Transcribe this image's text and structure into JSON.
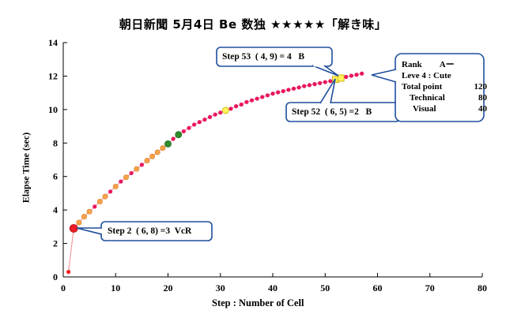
{
  "title": "朝日新聞 5月4日 Be 数独 ★★★★★「解き味」",
  "chart_data": {
    "type": "scatter",
    "title": "朝日新聞 5月4日 Be 数独 ★★★★★「解き味」",
    "xlabel": "Step :   Number of Cell",
    "ylabel": "Elapse Time (sec)",
    "xlim": [
      0,
      80
    ],
    "ylim": [
      0,
      14
    ],
    "xticks": [
      "0",
      "10",
      "20",
      "30",
      "40",
      "50",
      "60",
      "70",
      "80"
    ],
    "yticks": [
      "0",
      "2",
      "4",
      "6",
      "8",
      "10",
      "12",
      "14"
    ],
    "grid": false,
    "series": [
      {
        "name": "elapse",
        "x": [
          1,
          2,
          3,
          4,
          5,
          6,
          7,
          8,
          9,
          10,
          11,
          12,
          13,
          14,
          15,
          16,
          17,
          18,
          19,
          20,
          21,
          22,
          23,
          24,
          25,
          26,
          27,
          28,
          29,
          30,
          31,
          32,
          33,
          34,
          35,
          36,
          37,
          38,
          39,
          40,
          41,
          42,
          43,
          44,
          45,
          46,
          47,
          48,
          49,
          50,
          51,
          52,
          53,
          54,
          55,
          56,
          57
        ],
        "y": [
          0.3,
          2.9,
          3.25,
          3.6,
          3.9,
          4.2,
          4.5,
          4.8,
          5.1,
          5.4,
          5.7,
          5.95,
          6.2,
          6.45,
          6.7,
          6.95,
          7.2,
          7.45,
          7.7,
          7.95,
          8.25,
          8.5,
          8.7,
          8.9,
          9.1,
          9.25,
          9.4,
          9.55,
          9.7,
          9.82,
          9.95,
          10.05,
          10.2,
          10.3,
          10.45,
          10.55,
          10.65,
          10.75,
          10.85,
          10.95,
          11.03,
          11.1,
          11.18,
          11.25,
          11.32,
          11.4,
          11.46,
          11.52,
          11.58,
          11.64,
          11.7,
          11.8,
          11.88,
          11.95,
          12.02,
          12.08,
          12.15
        ],
        "markers": {
          "1": "red-small",
          "2": "red-big",
          "3": "orange",
          "4": "orange",
          "5": "orange",
          "7": "orange",
          "8": "orange",
          "10": "orange",
          "12": "orange",
          "14": "orange",
          "16": "orange",
          "17": "orange",
          "18": "orange",
          "19": "orange",
          "20": "green",
          "22": "green",
          "31": "yellow-circle",
          "52": "yellow-square",
          "53": "yellow-square"
        }
      }
    ],
    "colors": {
      "line": "#f4878f",
      "pink": "#e8175d",
      "red": "#ee1c25",
      "orange": "#f7a24a",
      "green": "#2f8e2b",
      "yellow": "#fff35a",
      "callout_border": "#1e4e9e"
    },
    "annotations": {
      "step2": {
        "label": "Step 2",
        "coords": "( 6, 8)",
        "eq": "=3",
        "tag": "VcR"
      },
      "step52": {
        "label": "Step 52",
        "coords": "( 6, 5)",
        "eq": "=2",
        "tag": "B"
      },
      "step53": {
        "label": "Step 53",
        "coords": "( 4, 9)",
        "eq": "= 4",
        "tag": "B"
      },
      "rank": {
        "rank_label": "Rank",
        "rank_value": "Aー",
        "level": "Leve 4 : Cute",
        "total_label": "Total point",
        "total_value": "120",
        "technical_label": "Technical",
        "technical_value": "80",
        "visual_label": "Visual",
        "visual_value": "40"
      }
    }
  }
}
